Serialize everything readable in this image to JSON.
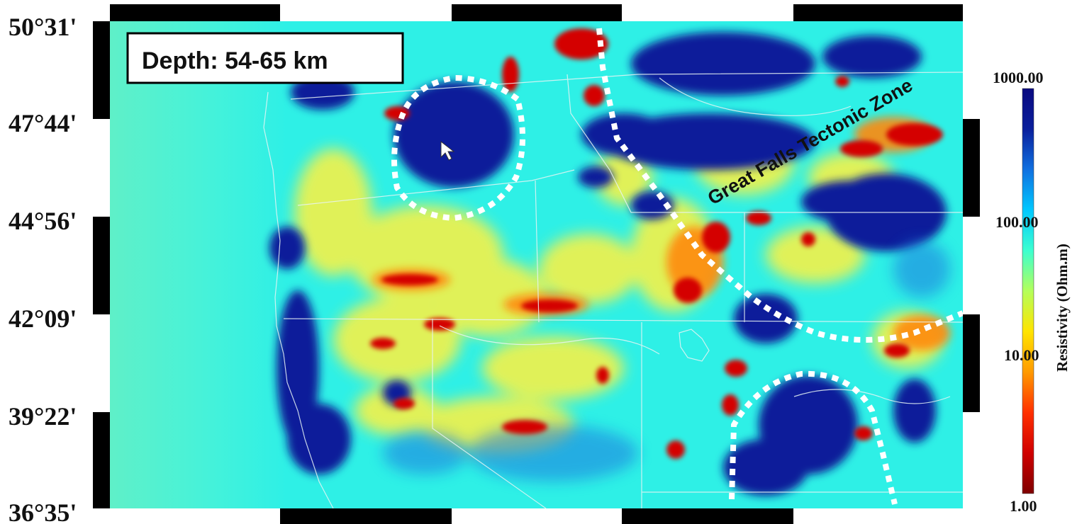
{
  "map": {
    "depth_label": "Depth: 54-65 km",
    "zone_label": "Great Falls Tectonic Zone",
    "latitude_labels": [
      "50°31'",
      "47°44'",
      "44°56'",
      "42°09'",
      "39°22'",
      "36°35'"
    ]
  },
  "colorbar": {
    "title": "Resistivity (Ohm.m)",
    "ticks": [
      "1000.00",
      "100.00",
      "10.00",
      "1.00"
    ],
    "stops": [
      "#7f0000",
      "#d00000",
      "#ff3000",
      "#ff9a00",
      "#ffe400",
      "#b4ff5a",
      "#3cffd0",
      "#00c8ff",
      "#1070e0",
      "#0a1f9c",
      "#0a0a80"
    ]
  },
  "colors": {
    "background": "#2ef0e6",
    "high_resistivity": "#0d1a9a",
    "low_resistivity": "#d40000",
    "frame_black": "#000000",
    "annotation_dots": "#ffffff"
  }
}
